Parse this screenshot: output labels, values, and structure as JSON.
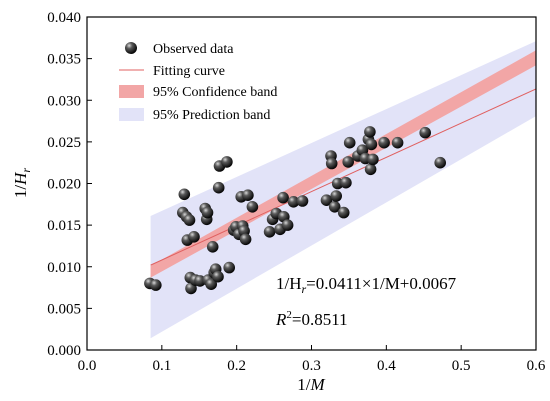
{
  "chart_data": {
    "type": "scatter",
    "xlabel": "1/M",
    "ylabel": "1/Hr",
    "xlim": [
      0.0,
      0.6
    ],
    "ylim": [
      0.0,
      0.04
    ],
    "x_ticks": [
      "0.0",
      "0.1",
      "0.2",
      "0.3",
      "0.4",
      "0.5",
      "0.6"
    ],
    "y_ticks": [
      "0.000",
      "0.005",
      "0.010",
      "0.015",
      "0.020",
      "0.025",
      "0.030",
      "0.035",
      "0.040"
    ],
    "legend": [
      {
        "label": "Observed data",
        "kind": "marker"
      },
      {
        "label": "Fitting curve",
        "kind": "line",
        "color": "#e06060"
      },
      {
        "label": "95% Confidence band",
        "kind": "patch",
        "color": "#f2a6a6"
      },
      {
        "label": "95% Prediction band",
        "kind": "patch",
        "color": "#e2e3f8"
      }
    ],
    "legend_position": "top-left",
    "fit": {
      "slope": 0.0411,
      "intercept": 0.0067,
      "x_range": [
        0.085,
        0.6
      ]
    },
    "confidence_band": {
      "lower": [
        [
          0.085,
          0.0087
        ],
        [
          0.6,
          0.0342
        ]
      ],
      "upper": [
        [
          0.085,
          0.0101
        ],
        [
          0.6,
          0.036
        ]
      ]
    },
    "prediction_band": {
      "lower": [
        [
          0.085,
          0.0014
        ],
        [
          0.6,
          0.0281
        ]
      ],
      "upper": [
        [
          0.085,
          0.0161
        ],
        [
          0.6,
          0.0371
        ]
      ]
    },
    "annotations": {
      "equation_prefix": "1/H",
      "equation_sub": "r",
      "equation_rest": "=0.0411×1/M+0.0067",
      "r2_prefix": "R",
      "r2_sup": "2",
      "r2_rest": "=0.8511"
    },
    "points": [
      {
        "x": 0.084,
        "y": 0.008
      },
      {
        "x": 0.092,
        "y": 0.0078
      },
      {
        "x": 0.128,
        "y": 0.0165
      },
      {
        "x": 0.13,
        "y": 0.0187
      },
      {
        "x": 0.133,
        "y": 0.016
      },
      {
        "x": 0.134,
        "y": 0.0132
      },
      {
        "x": 0.137,
        "y": 0.0156
      },
      {
        "x": 0.138,
        "y": 0.0087
      },
      {
        "x": 0.139,
        "y": 0.0074
      },
      {
        "x": 0.143,
        "y": 0.0136
      },
      {
        "x": 0.145,
        "y": 0.0084
      },
      {
        "x": 0.151,
        "y": 0.0083
      },
      {
        "x": 0.158,
        "y": 0.017
      },
      {
        "x": 0.16,
        "y": 0.0157
      },
      {
        "x": 0.161,
        "y": 0.0165
      },
      {
        "x": 0.162,
        "y": 0.0084
      },
      {
        "x": 0.166,
        "y": 0.0079
      },
      {
        "x": 0.168,
        "y": 0.0124
      },
      {
        "x": 0.17,
        "y": 0.0093
      },
      {
        "x": 0.172,
        "y": 0.0097
      },
      {
        "x": 0.175,
        "y": 0.0088
      },
      {
        "x": 0.176,
        "y": 0.0195
      },
      {
        "x": 0.177,
        "y": 0.0221
      },
      {
        "x": 0.187,
        "y": 0.0226
      },
      {
        "x": 0.19,
        "y": 0.0099
      },
      {
        "x": 0.196,
        "y": 0.0144
      },
      {
        "x": 0.199,
        "y": 0.0148
      },
      {
        "x": 0.203,
        "y": 0.0139
      },
      {
        "x": 0.206,
        "y": 0.0184
      },
      {
        "x": 0.208,
        "y": 0.0149
      },
      {
        "x": 0.21,
        "y": 0.0143
      },
      {
        "x": 0.212,
        "y": 0.0133
      },
      {
        "x": 0.215,
        "y": 0.0186
      },
      {
        "x": 0.221,
        "y": 0.0172
      },
      {
        "x": 0.244,
        "y": 0.0142
      },
      {
        "x": 0.248,
        "y": 0.0157
      },
      {
        "x": 0.253,
        "y": 0.0164
      },
      {
        "x": 0.258,
        "y": 0.0145
      },
      {
        "x": 0.262,
        "y": 0.0183
      },
      {
        "x": 0.263,
        "y": 0.016
      },
      {
        "x": 0.268,
        "y": 0.015
      },
      {
        "x": 0.276,
        "y": 0.0178
      },
      {
        "x": 0.288,
        "y": 0.0179
      },
      {
        "x": 0.32,
        "y": 0.018
      },
      {
        "x": 0.326,
        "y": 0.0233
      },
      {
        "x": 0.327,
        "y": 0.0224
      },
      {
        "x": 0.331,
        "y": 0.0172
      },
      {
        "x": 0.333,
        "y": 0.0185
      },
      {
        "x": 0.335,
        "y": 0.02
      },
      {
        "x": 0.343,
        "y": 0.0165
      },
      {
        "x": 0.346,
        "y": 0.0201
      },
      {
        "x": 0.349,
        "y": 0.0226
      },
      {
        "x": 0.351,
        "y": 0.0249
      },
      {
        "x": 0.362,
        "y": 0.0233
      },
      {
        "x": 0.368,
        "y": 0.024
      },
      {
        "x": 0.372,
        "y": 0.023
      },
      {
        "x": 0.376,
        "y": 0.0253
      },
      {
        "x": 0.378,
        "y": 0.0262
      },
      {
        "x": 0.379,
        "y": 0.0217
      },
      {
        "x": 0.38,
        "y": 0.0247
      },
      {
        "x": 0.382,
        "y": 0.0229
      },
      {
        "x": 0.397,
        "y": 0.0249
      },
      {
        "x": 0.415,
        "y": 0.0249
      },
      {
        "x": 0.452,
        "y": 0.0261
      },
      {
        "x": 0.472,
        "y": 0.0225
      }
    ]
  }
}
